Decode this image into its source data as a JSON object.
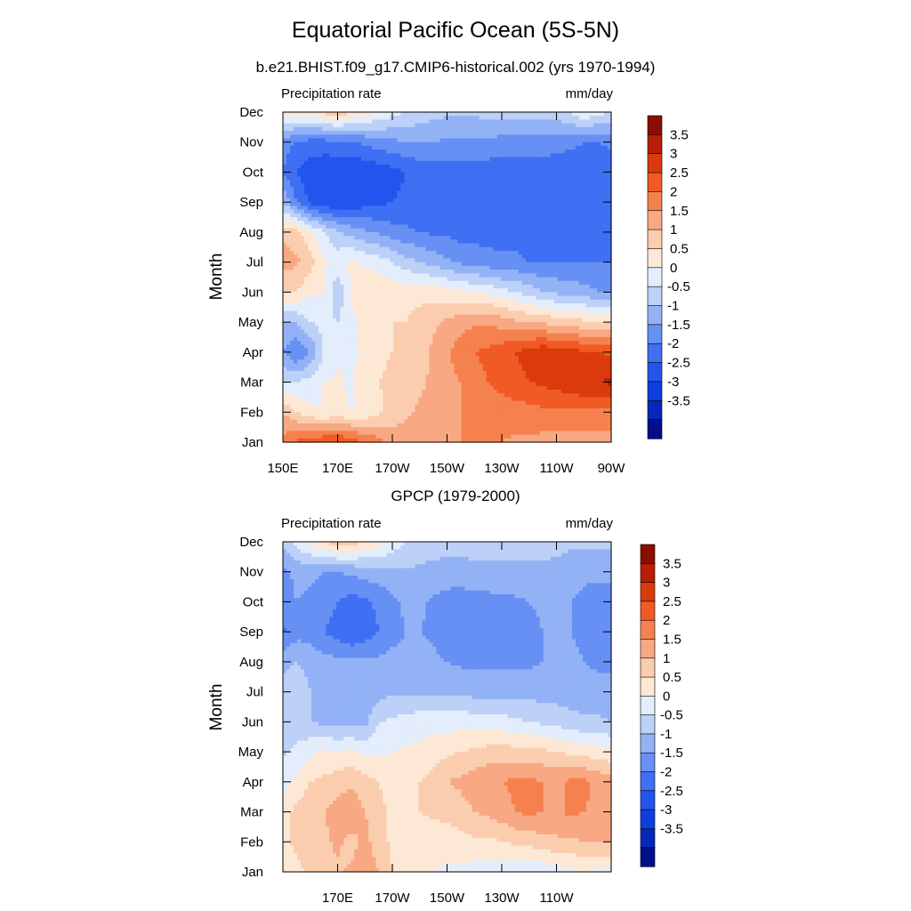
{
  "title": "Equatorial Pacific Ocean (5S-5N)",
  "colors": {
    "levels": [
      -4,
      -3.5,
      -3,
      -2.5,
      -2,
      -1.5,
      -1,
      -0.5,
      0,
      0.5,
      1,
      1.5,
      2,
      2.5,
      3,
      3.5,
      4
    ],
    "fills": [
      "#000f8c",
      "#0628b8",
      "#0f3ee0",
      "#2355ee",
      "#3f6ff2",
      "#6690f4",
      "#93b2f6",
      "#bcd0f8",
      "#e3edfb",
      "#fde8d6",
      "#fbcdaf",
      "#f8a882",
      "#f5814f",
      "#f05a25",
      "#db3a0c",
      "#b71f06",
      "#8a0e02"
    ]
  },
  "chart_data": [
    {
      "type": "heatmap",
      "panel": "top",
      "title": "b.e21.BHIST.f09_g17.CMIP6-historical.002 (yrs 1970-1994)",
      "left_string": "Precipitation rate",
      "right_string": "mm/day",
      "ylabel": "Month",
      "x": [
        150,
        155,
        160,
        165,
        170,
        175,
        180,
        185,
        190,
        195,
        200,
        205,
        210,
        215,
        220,
        225,
        230,
        235,
        240,
        245,
        250,
        255,
        260,
        265,
        270
      ],
      "x_tick_labels": [
        "150E",
        "170E",
        "170W",
        "150W",
        "130W",
        "110W",
        "90W"
      ],
      "y_tick_labels": [
        "Jan",
        "Feb",
        "Mar",
        "Apr",
        "May",
        "Jun",
        "Jul",
        "Aug",
        "Sep",
        "Oct",
        "Nov",
        "Dec"
      ],
      "colorbar_labels": [
        "3.5",
        "3",
        "2.5",
        "2",
        "1.5",
        "1",
        "0.5",
        "0",
        "-0.5",
        "-1",
        "-1.5",
        "-2",
        "-2.5",
        "-3",
        "-3.5"
      ],
      "z": [
        [
          2.2,
          2.6,
          2.8,
          3.0,
          3.1,
          2.8,
          2.5,
          2.2,
          1.8,
          1.8,
          1.9,
          2.0,
          2.0,
          2.0,
          2.0,
          2.0,
          2.0,
          1.9,
          1.9,
          1.8,
          1.8,
          1.8,
          1.8,
          1.7,
          1.7
        ],
        [
          1.5,
          1.0,
          0.6,
          0.5,
          0.6,
          0.5,
          0.6,
          0.9,
          1.2,
          1.4,
          1.6,
          1.8,
          1.9,
          2.0,
          2.1,
          2.2,
          2.2,
          2.3,
          2.3,
          2.4,
          2.4,
          2.4,
          2.4,
          2.4,
          2.4
        ],
        [
          0.0,
          0.0,
          0.2,
          0.5,
          0.6,
          0.4,
          0.8,
          1.0,
          1.1,
          1.0,
          1.4,
          1.6,
          1.8,
          2.0,
          2.3,
          2.5,
          2.7,
          2.8,
          3.0,
          3.1,
          3.2,
          3.4,
          3.5,
          3.5,
          3.6
        ],
        [
          -1.0,
          -1.5,
          -1.0,
          0.0,
          0.4,
          0.3,
          0.8,
          0.9,
          1.0,
          1.1,
          1.3,
          1.6,
          1.9,
          2.3,
          2.5,
          2.6,
          2.8,
          3.0,
          3.2,
          3.4,
          3.3,
          3.2,
          3.1,
          3.0,
          2.9
        ],
        [
          -0.5,
          -0.5,
          0.0,
          0.2,
          0.0,
          0.3,
          0.8,
          0.9,
          1.0,
          1.0,
          1.2,
          1.4,
          1.6,
          1.8,
          1.9,
          1.9,
          1.8,
          1.6,
          1.5,
          1.4,
          1.3,
          1.2,
          1.1,
          1.0,
          0.9
        ],
        [
          1.0,
          1.0,
          0.6,
          0.5,
          -0.4,
          0.6,
          0.9,
          0.9,
          0.8,
          0.8,
          0.8,
          0.8,
          0.7,
          0.6,
          0.5,
          0.4,
          0.2,
          0.0,
          -0.2,
          -0.5,
          -0.6,
          -0.7,
          -0.8,
          -1.0,
          -1.1
        ],
        [
          1.7,
          1.6,
          1.2,
          0.6,
          0.3,
          0.6,
          0.4,
          0.3,
          0.0,
          -0.3,
          -0.5,
          -0.7,
          -0.9,
          -1.1,
          -1.2,
          -1.3,
          -1.4,
          -1.4,
          -1.5,
          -1.5,
          -1.5,
          -1.5,
          -1.5,
          -1.5,
          -1.5
        ],
        [
          1.4,
          1.2,
          0.6,
          0.0,
          -0.4,
          -0.7,
          -0.9,
          -1.1,
          -1.3,
          -1.4,
          -1.5,
          -1.6,
          -1.6,
          -1.7,
          -1.7,
          -1.7,
          -1.7,
          -1.7,
          -1.7,
          -1.7,
          -1.7,
          -1.7,
          -1.7,
          -1.7,
          -1.7
        ],
        [
          -0.5,
          -1.5,
          -2.1,
          -2.4,
          -2.5,
          -2.4,
          -2.2,
          -2.1,
          -2.0,
          -1.9,
          -1.9,
          -1.8,
          -1.8,
          -1.8,
          -1.8,
          -1.8,
          -1.8,
          -1.8,
          -1.8,
          -1.8,
          -1.8,
          -1.8,
          -1.8,
          -1.8,
          -1.8
        ],
        [
          -1.5,
          -2.0,
          -2.3,
          -2.4,
          -2.5,
          -2.5,
          -2.4,
          -2.3,
          -2.2,
          -2.0,
          -1.8,
          -1.8,
          -1.8,
          -1.8,
          -1.8,
          -1.8,
          -1.8,
          -1.8,
          -1.8,
          -1.8,
          -1.8,
          -1.8,
          -1.8,
          -1.8,
          -1.8
        ],
        [
          -1.3,
          -1.5,
          -1.7,
          -1.7,
          -1.6,
          -1.5,
          -1.4,
          -1.2,
          -1.1,
          -1.0,
          -1.0,
          -1.0,
          -1.1,
          -1.1,
          -1.1,
          -1.1,
          -1.2,
          -1.2,
          -1.2,
          -1.2,
          -1.3,
          -1.4,
          -1.5,
          -1.5,
          -1.4
        ],
        [
          0.8,
          0.7,
          0.8,
          1.1,
          1.4,
          1.0,
          0.7,
          0.5,
          0.2,
          0.0,
          -0.2,
          -0.3,
          -0.4,
          -0.4,
          -0.4,
          -0.3,
          -0.3,
          -0.2,
          -0.2,
          -0.2,
          -0.2,
          0.0,
          0.5,
          0.2,
          0.0
        ]
      ]
    },
    {
      "type": "heatmap",
      "panel": "bottom",
      "title": "GPCP (1979-2000)",
      "left_string": "Precipitation rate",
      "right_string": "mm/day",
      "ylabel": "Month",
      "x": [
        150,
        155,
        160,
        165,
        170,
        175,
        180,
        185,
        190,
        195,
        200,
        205,
        210,
        215,
        220,
        225,
        230,
        235,
        240,
        245,
        250,
        255,
        260,
        265,
        270
      ],
      "x_tick_labels": [
        "170E",
        "170W",
        "150W",
        "130W",
        "110W"
      ],
      "y_tick_labels": [
        "Jan",
        "Feb",
        "Mar",
        "Apr",
        "May",
        "Jun",
        "Jul",
        "Aug",
        "Sep",
        "Oct",
        "Nov",
        "Dec"
      ],
      "colorbar_labels": [
        "3.5",
        "3",
        "2.5",
        "2",
        "1.5",
        "1",
        "0.5",
        "0",
        "-0.5",
        "-1",
        "-1.5",
        "-2",
        "-2.5",
        "-3",
        "-3.5"
      ],
      "z": [
        [
          0.8,
          0.9,
          1.1,
          1.3,
          1.4,
          1.6,
          1.8,
          1.5,
          1.0,
          0.8,
          0.6,
          0.5,
          0.4,
          0.4,
          0.3,
          0.3,
          0.2,
          0.1,
          0.0,
          0.1,
          0.3,
          0.4,
          0.5,
          0.4,
          0.4
        ],
        [
          0.9,
          1.1,
          1.2,
          1.4,
          1.6,
          1.3,
          1.7,
          1.2,
          0.9,
          0.8,
          0.7,
          0.7,
          0.7,
          0.8,
          0.9,
          0.9,
          1.0,
          1.1,
          1.2,
          1.3,
          1.4,
          1.4,
          1.5,
          1.5,
          1.5
        ],
        [
          0.7,
          1.2,
          1.4,
          1.5,
          1.7,
          1.9,
          1.5,
          1.1,
          0.9,
          0.9,
          1.0,
          1.1,
          1.2,
          1.3,
          1.5,
          1.6,
          1.8,
          2.0,
          2.1,
          2.0,
          1.9,
          2.1,
          2.0,
          1.9,
          1.8
        ],
        [
          0.3,
          0.6,
          1.0,
          1.1,
          1.3,
          1.4,
          1.2,
          1.0,
          0.9,
          1.0,
          1.0,
          1.2,
          1.5,
          1.6,
          1.8,
          1.9,
          2.0,
          2.1,
          2.1,
          2.0,
          1.9,
          2.1,
          2.1,
          1.9,
          1.8
        ],
        [
          -0.1,
          0.1,
          0.4,
          0.6,
          0.5,
          0.6,
          0.4,
          0.4,
          0.5,
          0.6,
          0.6,
          0.8,
          0.9,
          1.0,
          1.1,
          1.2,
          1.2,
          1.2,
          1.2,
          1.1,
          1.0,
          0.9,
          0.8,
          0.7,
          0.6
        ],
        [
          -0.4,
          -0.3,
          -0.5,
          -0.6,
          -0.7,
          -0.7,
          -0.7,
          0.0,
          0.1,
          0.2,
          0.3,
          0.3,
          0.3,
          0.3,
          0.3,
          0.2,
          0.2,
          0.1,
          0.0,
          -0.1,
          -0.2,
          -0.3,
          -0.4,
          -0.4,
          -0.5
        ],
        [
          -0.4,
          -0.3,
          -0.5,
          -0.6,
          -0.7,
          -0.8,
          -0.8,
          -0.7,
          -0.6,
          -0.6,
          -0.6,
          -0.6,
          -0.6,
          -0.6,
          -0.7,
          -0.7,
          -0.7,
          -0.7,
          -0.7,
          -0.7,
          -0.7,
          -0.8,
          -0.8,
          -0.8,
          -0.8
        ],
        [
          -0.6,
          -0.5,
          -0.6,
          -0.8,
          -0.9,
          -0.9,
          -0.9,
          -0.9,
          -0.8,
          -0.8,
          -0.8,
          -0.9,
          -1.0,
          -1.1,
          -1.1,
          -1.1,
          -1.1,
          -1.1,
          -1.1,
          -1.0,
          -0.9,
          -0.9,
          -1.0,
          -1.1,
          -1.1
        ],
        [
          -1.6,
          -1.2,
          -1.3,
          -1.5,
          -1.7,
          -2.0,
          -1.8,
          -1.5,
          -1.2,
          -1.0,
          -1.0,
          -1.1,
          -1.3,
          -1.4,
          -1.4,
          -1.4,
          -1.3,
          -1.3,
          -1.2,
          -1.0,
          -0.9,
          -1.0,
          -1.1,
          -1.2,
          -1.2
        ],
        [
          -1.2,
          -1.0,
          -1.1,
          -1.3,
          -1.5,
          -1.7,
          -1.6,
          -1.4,
          -1.1,
          -0.9,
          -0.9,
          -1.1,
          -1.2,
          -1.3,
          -1.2,
          -1.2,
          -1.1,
          -1.1,
          -1.0,
          -0.9,
          -0.9,
          -1.0,
          -1.1,
          -1.2,
          -1.2
        ],
        [
          -1.1,
          -0.9,
          -0.9,
          -1.0,
          -1.0,
          -0.9,
          -0.8,
          -0.7,
          -0.6,
          -0.6,
          -0.6,
          -0.7,
          -0.7,
          -0.7,
          -0.6,
          -0.6,
          -0.6,
          -0.6,
          -0.6,
          -0.6,
          -0.7,
          -0.8,
          -0.9,
          -0.9,
          -0.9
        ],
        [
          -0.4,
          0.2,
          0.7,
          1.0,
          1.3,
          1.2,
          1.0,
          0.7,
          0.3,
          0.0,
          -0.1,
          -0.2,
          -0.3,
          -0.3,
          -0.3,
          -0.3,
          -0.3,
          -0.3,
          -0.3,
          -0.3,
          -0.3,
          -0.4,
          -0.4,
          -0.4,
          -0.4
        ]
      ]
    }
  ]
}
